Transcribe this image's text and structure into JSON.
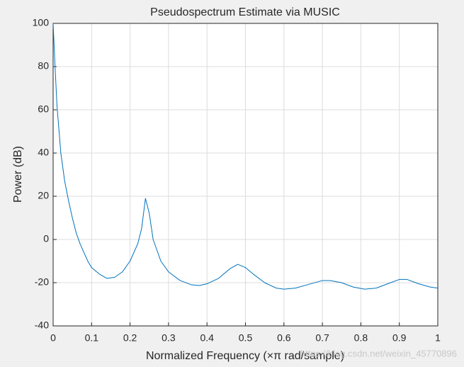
{
  "chart_data": {
    "type": "line",
    "title": "Pseudospectrum Estimate via MUSIC",
    "x_label": "Normalized Frequency  (×π rad/sample)",
    "y_label": "Power (dB)",
    "watermark": "https://blog.csdn.net/weixin_45770896",
    "xlim": [
      0,
      1
    ],
    "ylim": [
      -40,
      100
    ],
    "xticks": [
      0,
      0.1,
      0.2,
      0.3,
      0.4,
      0.5,
      0.6,
      0.7,
      0.8,
      0.9,
      1
    ],
    "yticks": [
      -40,
      -20,
      0,
      20,
      40,
      60,
      80,
      100
    ],
    "grid": true,
    "series": [
      {
        "color": "#0072bd",
        "x": [
          0,
          0.005,
          0.01,
          0.02,
          0.03,
          0.04,
          0.05,
          0.06,
          0.07,
          0.08,
          0.09,
          0.1,
          0.12,
          0.14,
          0.16,
          0.18,
          0.2,
          0.22,
          0.23,
          0.24,
          0.25,
          0.26,
          0.28,
          0.3,
          0.33,
          0.36,
          0.38,
          0.4,
          0.43,
          0.46,
          0.48,
          0.5,
          0.52,
          0.55,
          0.58,
          0.6,
          0.63,
          0.66,
          0.7,
          0.72,
          0.75,
          0.78,
          0.81,
          0.84,
          0.87,
          0.9,
          0.92,
          0.95,
          0.98,
          1
        ],
        "values": [
          100,
          80,
          62,
          40,
          27,
          18,
          10,
          3,
          -2,
          -6,
          -10,
          -13,
          -16,
          -18,
          -17.5,
          -15,
          -10,
          -2,
          5,
          19,
          12,
          0,
          -10,
          -15,
          -19,
          -21,
          -21.3,
          -20.5,
          -18,
          -13.5,
          -11.5,
          -13,
          -16,
          -20,
          -22.5,
          -23,
          -22.5,
          -21,
          -19,
          -19,
          -20,
          -22,
          -23,
          -22.5,
          -20.5,
          -18.5,
          -18.5,
          -20.5,
          -22,
          -22.5
        ]
      }
    ]
  }
}
